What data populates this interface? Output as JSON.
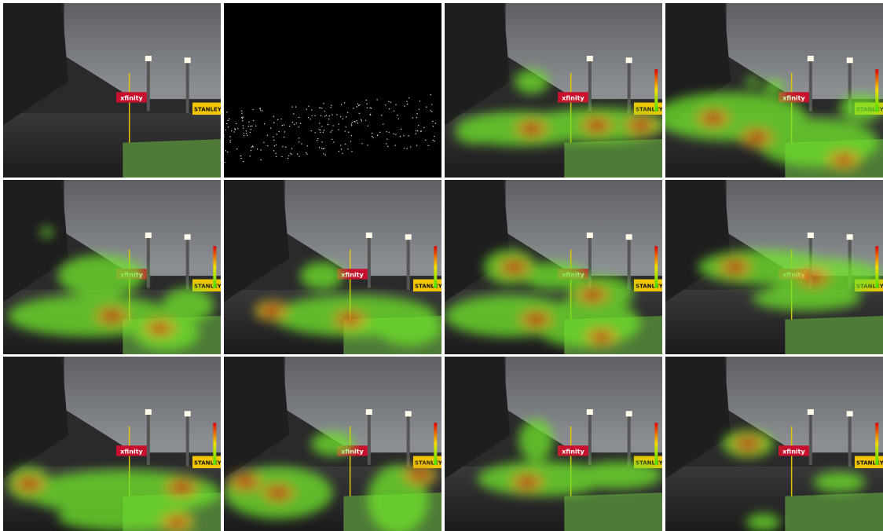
{
  "signs": [
    "xfinity",
    "STANLEY"
  ]
}
